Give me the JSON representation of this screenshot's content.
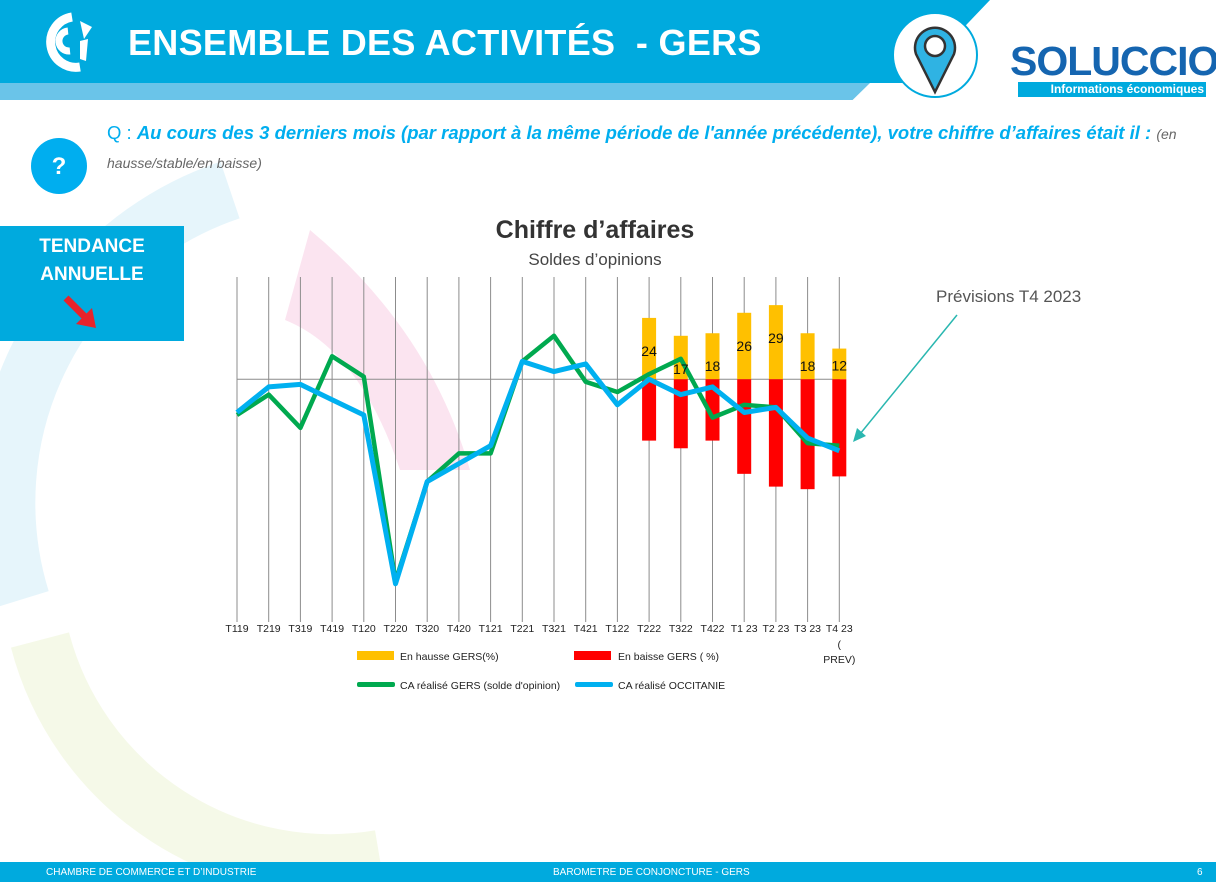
{
  "header": {
    "title": "ENSEMBLE DES ACTIVITÉS  - GERS",
    "brand": "SOLUCCIO",
    "brand_tagline": "Informations économiques"
  },
  "question": {
    "prefix": "Q : ",
    "text": "Au cours des 3 derniers mois (par rapport à la même période de l'année précédente),  votre chiffre d’affaires était il : ",
    "options": "(en hausse/stable/en baisse)",
    "icon_label": "?"
  },
  "tendance": {
    "line1": "TENDANCE",
    "line2": "ANNUELLE"
  },
  "annotation": "Prévisions T4 2023",
  "footer": {
    "left": "CHAMBRE DE COMMERCE ET D’INDUSTRIE",
    "center": "BAROMETRE DE CONJONCTURE - GERS",
    "page": "6"
  },
  "chart_data": {
    "type": "bar+line",
    "title": "Chiffre d’affaires",
    "subtitle": "Soldes d’opinions",
    "categories": [
      "T119",
      "T219",
      "T319",
      "T419",
      "T120",
      "T220",
      "T320",
      "T420",
      "T121",
      "T221",
      "T321",
      "T421",
      "T122",
      "T222",
      "T322",
      "T422",
      "T1 23",
      "T2 23",
      "T3 23",
      "T4 23 ( PREV)"
    ],
    "ylim": [
      -93,
      40
    ],
    "grid": "vertical",
    "legend_position": "bottom",
    "series": [
      {
        "name": "En hausse  GERS(%)",
        "kind": "bar",
        "color": "#ffc000",
        "values": [
          null,
          null,
          null,
          null,
          null,
          null,
          null,
          null,
          null,
          null,
          null,
          null,
          null,
          24,
          17,
          18,
          26,
          29,
          18,
          12
        ],
        "labels": true
      },
      {
        "name": "En baisse GERS ( %)",
        "kind": "bar",
        "color": "#ff0000",
        "values": [
          null,
          null,
          null,
          null,
          null,
          null,
          null,
          null,
          null,
          null,
          null,
          null,
          null,
          -24,
          -27,
          -24,
          -37,
          -42,
          -43,
          -38
        ]
      },
      {
        "name": "CA réalisé GERS  (solde d'opinion)",
        "kind": "line",
        "color": "#00a94f",
        "values": [
          -14,
          -6,
          -19,
          9,
          1,
          -79,
          -40,
          -29,
          -29,
          7,
          17,
          -1,
          -5,
          2,
          8,
          -15,
          -10,
          -11,
          -25,
          -26
        ]
      },
      {
        "name": "CA réalisé OCCITANIE",
        "kind": "line",
        "color": "#00b0f0",
        "values": [
          -13,
          -3,
          -2,
          -8,
          -14,
          -80,
          -40,
          -33,
          -26,
          7,
          3,
          6,
          -10,
          0,
          -6,
          -3,
          -13,
          -11,
          -23,
          -28
        ]
      }
    ]
  }
}
